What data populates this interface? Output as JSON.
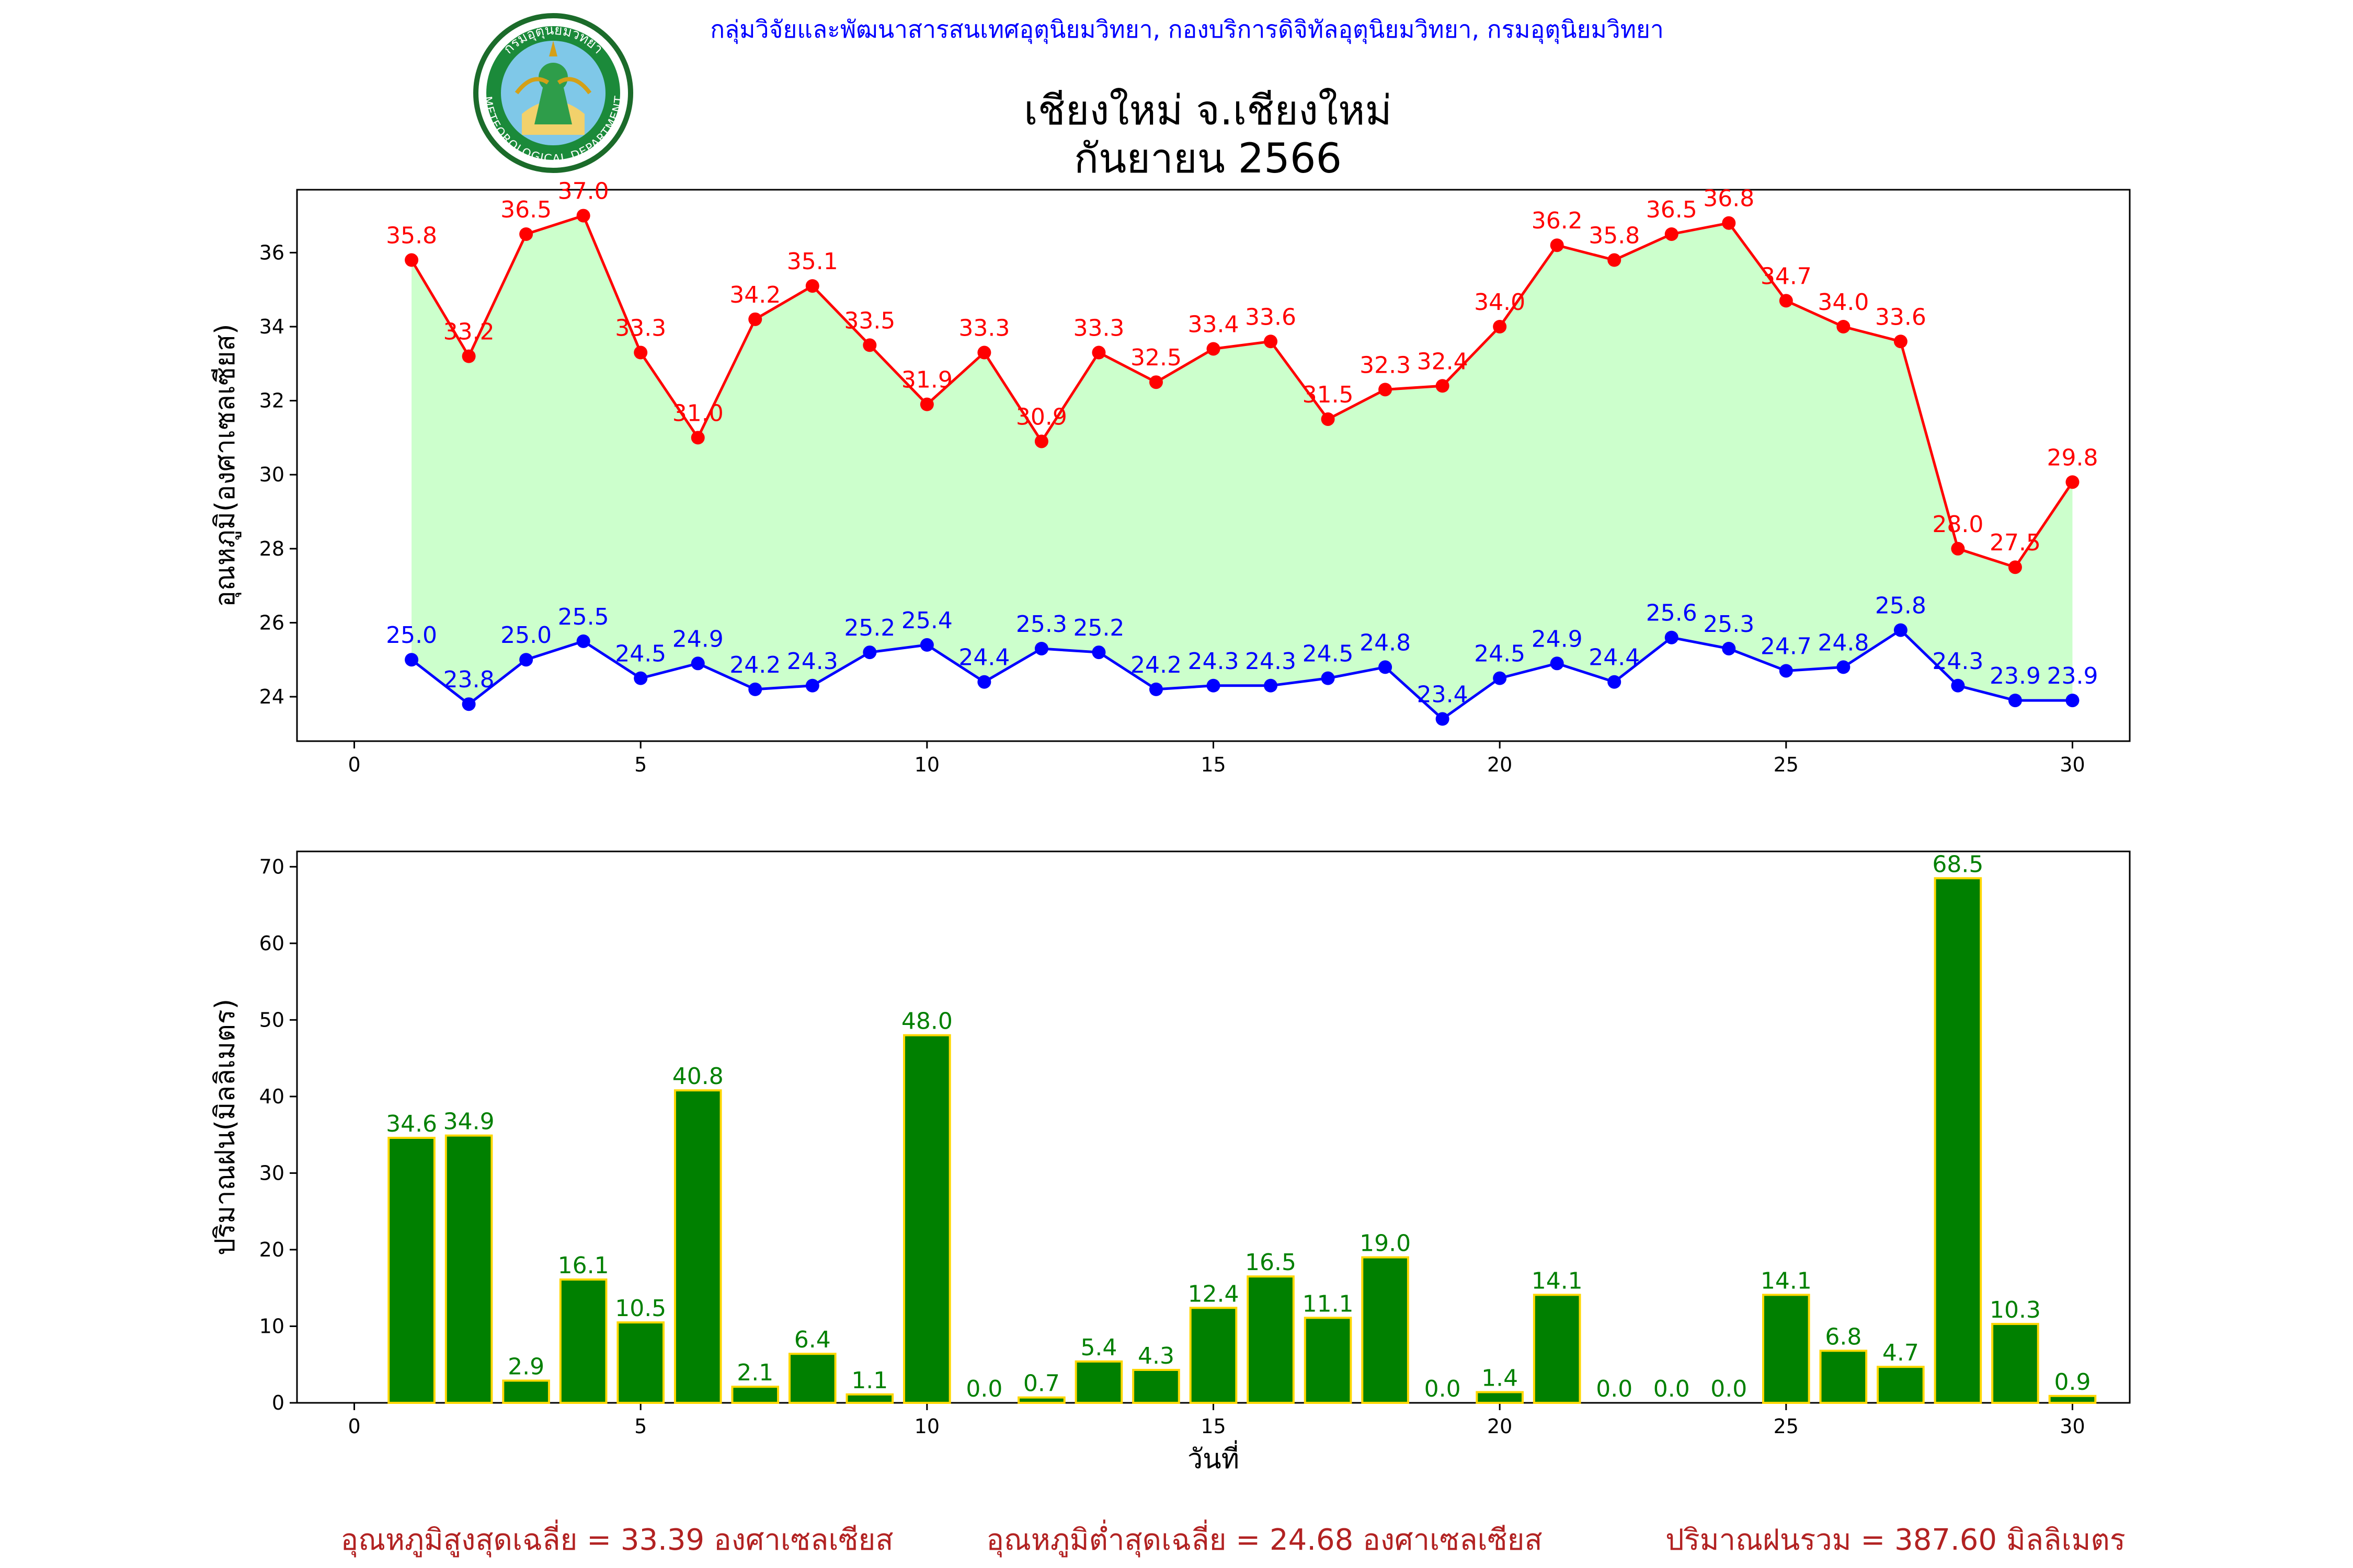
{
  "header": {
    "department_line": "กลุ่มวิจัยและพัฒนาสารสนเทศอุตุนิยมวิทยา, กองบริการดิจิทัลอุตุนิยมวิทยา, กรมอุตุนิยมวิทยา",
    "station": "เชียงใหม่ จ.เชียงใหม่",
    "period": "กันยายน 2566",
    "seal_top_text": "กรมอุตุนิยมวิทยา",
    "seal_bottom_text": "METEOROLOGICAL DEPARTMENT"
  },
  "colors": {
    "max_line": "#ff0000",
    "min_line": "#0000ff",
    "fill": "#ccffcc",
    "bar": "#008000",
    "bar_edge": "#ffd700",
    "bar_label": "#008000",
    "footer_text": "#b22222",
    "header_text": "#0000ff"
  },
  "chart_data": [
    {
      "type": "line",
      "title": "",
      "xlabel": "",
      "ylabel": "อุณหภูมิ(องศาเซลเซียส)",
      "xlim": [
        -1,
        31
      ],
      "ylim": [
        22.8,
        37.7
      ],
      "x_ticks": [
        0,
        5,
        10,
        15,
        20,
        25,
        30
      ],
      "y_ticks": [
        24,
        26,
        28,
        30,
        32,
        34,
        36
      ],
      "x": [
        1,
        2,
        3,
        4,
        5,
        6,
        7,
        8,
        9,
        10,
        11,
        12,
        13,
        14,
        15,
        16,
        17,
        18,
        19,
        20,
        21,
        22,
        23,
        24,
        25,
        26,
        27,
        28,
        29,
        30
      ],
      "series": [
        {
          "key": "max",
          "values": [
            35.8,
            33.2,
            36.5,
            37.0,
            33.3,
            31.0,
            34.2,
            35.1,
            33.5,
            31.9,
            33.3,
            30.9,
            33.3,
            32.5,
            33.4,
            33.6,
            31.5,
            32.3,
            32.4,
            34.0,
            36.2,
            35.8,
            36.5,
            36.8,
            34.7,
            34.0,
            33.6,
            28.0,
            27.5,
            29.8
          ]
        },
        {
          "key": "min",
          "values": [
            25.0,
            23.8,
            25.0,
            25.5,
            24.5,
            24.9,
            24.2,
            24.3,
            25.2,
            25.4,
            24.4,
            25.3,
            25.2,
            24.2,
            24.3,
            24.3,
            24.5,
            24.8,
            23.4,
            24.5,
            24.9,
            24.4,
            25.6,
            25.3,
            24.7,
            24.8,
            25.8,
            24.3,
            23.9,
            23.9
          ]
        }
      ]
    },
    {
      "type": "bar",
      "title": "",
      "xlabel": "วันที่",
      "ylabel": "ปริมาณฝน(มิลลิเมตร)",
      "xlim": [
        -1,
        31
      ],
      "ylim": [
        0,
        72
      ],
      "x_ticks": [
        0,
        5,
        10,
        15,
        20,
        25,
        30
      ],
      "y_ticks": [
        0,
        10,
        20,
        30,
        40,
        50,
        60,
        70
      ],
      "categories": [
        1,
        2,
        3,
        4,
        5,
        6,
        7,
        8,
        9,
        10,
        11,
        12,
        13,
        14,
        15,
        16,
        17,
        18,
        19,
        20,
        21,
        22,
        23,
        24,
        25,
        26,
        27,
        28,
        29,
        30
      ],
      "values": [
        34.6,
        34.9,
        2.9,
        16.1,
        10.5,
        40.8,
        2.1,
        6.4,
        1.1,
        48.0,
        0.0,
        0.7,
        5.4,
        4.3,
        12.4,
        16.5,
        11.1,
        19.0,
        0.0,
        1.4,
        14.1,
        0.0,
        0.0,
        0.0,
        14.1,
        6.8,
        4.7,
        68.5,
        10.3,
        0.9
      ]
    }
  ],
  "footer": {
    "avg_max": "อุณหภูมิสูงสุดเฉลี่ย = 33.39 องศาเซลเซียส",
    "avg_min": "อุณหภูมิต่ำสุดเฉลี่ย = 24.68 องศาเซลเซียส",
    "total_rain": "ปริมาณฝนรวม = 387.60 มิลลิเมตร"
  }
}
